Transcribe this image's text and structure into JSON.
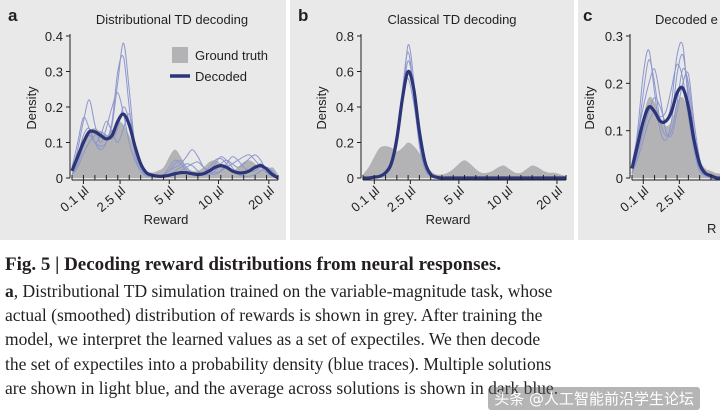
{
  "colors": {
    "panel_bg": "#e9e9ea",
    "ground_truth": "#b3b3b5",
    "decoded_dark": "#2b3577",
    "decoded_light": "#8d96cc",
    "text": "#231f20"
  },
  "panels": [
    {
      "letter": "a",
      "title": "Distributional TD decoding",
      "ylabel": "Density",
      "xlabel": "Reward",
      "yticks": [
        "0",
        "0.1",
        "0.2",
        "0.3",
        "0.4"
      ],
      "xticks": [
        "0.1 µl",
        "2.5 µl",
        "5 µl",
        "10 µl",
        "20 µl"
      ],
      "legend": {
        "ground_truth": "Ground truth",
        "decoded": "Decoded"
      }
    },
    {
      "letter": "b",
      "title": "Classical TD decoding",
      "ylabel": "Density",
      "xlabel": "Reward",
      "yticks": [
        "0",
        "0.2",
        "0.4",
        "0.6",
        "0.8"
      ],
      "xticks": [
        "0.1 µl",
        "2.5 µl",
        "5 µl",
        "10 µl",
        "20 µl"
      ]
    },
    {
      "letter": "c",
      "title": "Decoded e",
      "ylabel": "Density",
      "xlabel": "R",
      "yticks": [
        "0",
        "0.1",
        "0.2",
        "0.3"
      ],
      "xticks": [
        "0.1 µl",
        "2.5 µl",
        "5 µl"
      ]
    }
  ],
  "chart_data": [
    {
      "type": "area",
      "title": "Distributional TD decoding",
      "xlabel": "Reward",
      "ylabel": "Density",
      "ylim": [
        0,
        0.4
      ],
      "x_categories": [
        "0.1 µl",
        "2.5 µl",
        "5 µl",
        "10 µl",
        "20 µl"
      ],
      "x_index": [
        0,
        0.5,
        1,
        1.5,
        2,
        2.5,
        3,
        3.5,
        4,
        4.5,
        5,
        5.5,
        6,
        6.5,
        7,
        7.5,
        8,
        8.5,
        9,
        9.5,
        10,
        10.5,
        11,
        11.5,
        12,
        12.5,
        13,
        13.5,
        14,
        14.5,
        15,
        15.5,
        16,
        16.5,
        17,
        17.5,
        18
      ],
      "series": [
        {
          "name": "Ground truth",
          "values": [
            0.02,
            0.05,
            0.09,
            0.13,
            0.14,
            0.13,
            0.12,
            0.135,
            0.16,
            0.15,
            0.12,
            0.08,
            0.04,
            0.02,
            0.015,
            0.02,
            0.03,
            0.06,
            0.08,
            0.06,
            0.03,
            0.02,
            0.02,
            0.03,
            0.045,
            0.05,
            0.04,
            0.025,
            0.02,
            0.03,
            0.045,
            0.05,
            0.04,
            0.025,
            0.02,
            0.03,
            0.01
          ]
        },
        {
          "name": "Decoded",
          "values": [
            0.02,
            0.06,
            0.1,
            0.13,
            0.13,
            0.12,
            0.11,
            0.12,
            0.16,
            0.18,
            0.15,
            0.09,
            0.04,
            0.015,
            0.008,
            0.005,
            0.005,
            0.008,
            0.012,
            0.015,
            0.015,
            0.012,
            0.01,
            0.012,
            0.02,
            0.03,
            0.035,
            0.03,
            0.02,
            0.015,
            0.015,
            0.02,
            0.03,
            0.035,
            0.025,
            0.01,
            0.0
          ]
        },
        {
          "name": "Solution 1",
          "values": [
            0.02,
            0.08,
            0.16,
            0.22,
            0.15,
            0.1,
            0.14,
            0.2,
            0.24,
            0.18,
            0.1,
            0.05,
            0.02,
            0.01,
            0.005,
            0.005,
            0.01,
            0.03,
            0.05,
            0.04,
            0.02,
            0.01,
            0.005,
            0.01,
            0.02,
            0.04,
            0.06,
            0.05,
            0.03,
            0.01,
            0.005,
            0.005,
            0.01,
            0.02,
            0.03,
            0.02,
            0.0
          ]
        },
        {
          "name": "Solution 2",
          "values": [
            0.01,
            0.04,
            0.09,
            0.12,
            0.1,
            0.09,
            0.1,
            0.15,
            0.27,
            0.38,
            0.25,
            0.09,
            0.03,
            0.01,
            0.005,
            0.005,
            0.005,
            0.005,
            0.01,
            0.02,
            0.03,
            0.04,
            0.045,
            0.03,
            0.02,
            0.015,
            0.02,
            0.03,
            0.04,
            0.05,
            0.06,
            0.065,
            0.05,
            0.03,
            0.015,
            0.005,
            0.0
          ]
        },
        {
          "name": "Solution 3",
          "values": [
            0.03,
            0.1,
            0.17,
            0.14,
            0.1,
            0.12,
            0.16,
            0.13,
            0.1,
            0.14,
            0.18,
            0.1,
            0.04,
            0.01,
            0.005,
            0.005,
            0.01,
            0.02,
            0.03,
            0.04,
            0.06,
            0.08,
            0.06,
            0.03,
            0.015,
            0.01,
            0.02,
            0.04,
            0.06,
            0.05,
            0.03,
            0.02,
            0.02,
            0.03,
            0.025,
            0.01,
            0.0
          ]
        },
        {
          "name": "Solution 4",
          "values": [
            0.01,
            0.03,
            0.07,
            0.1,
            0.12,
            0.13,
            0.12,
            0.11,
            0.14,
            0.2,
            0.16,
            0.08,
            0.03,
            0.01,
            0.005,
            0.005,
            0.005,
            0.01,
            0.02,
            0.03,
            0.04,
            0.035,
            0.02,
            0.01,
            0.01,
            0.02,
            0.04,
            0.05,
            0.04,
            0.03,
            0.04,
            0.055,
            0.065,
            0.05,
            0.02,
            0.005,
            0.0
          ]
        },
        {
          "name": "Solution 5",
          "values": [
            0.02,
            0.06,
            0.12,
            0.14,
            0.1,
            0.08,
            0.1,
            0.16,
            0.3,
            0.34,
            0.2,
            0.07,
            0.02,
            0.005,
            0.005,
            0.005,
            0.01,
            0.02,
            0.04,
            0.05,
            0.03,
            0.015,
            0.01,
            0.015,
            0.03,
            0.05,
            0.055,
            0.04,
            0.02,
            0.01,
            0.01,
            0.02,
            0.03,
            0.04,
            0.02,
            0.01,
            0.0
          ]
        }
      ]
    },
    {
      "type": "area",
      "title": "Classical TD decoding",
      "xlabel": "Reward",
      "ylabel": "Density",
      "ylim": [
        0,
        0.8
      ],
      "x_categories": [
        "0.1 µl",
        "2.5 µl",
        "5 µl",
        "10 µl",
        "20 µl"
      ],
      "x_index": [
        0,
        0.5,
        1,
        1.5,
        2,
        2.5,
        3,
        3.5,
        4,
        4.5,
        5,
        5.5,
        6,
        6.5,
        7,
        7.5,
        8,
        8.5,
        9,
        9.5,
        10,
        10.5,
        11,
        11.5,
        12,
        12.5,
        13,
        13.5,
        14,
        14.5,
        15,
        15.5,
        16,
        16.5,
        17,
        17.5,
        18
      ],
      "series": [
        {
          "name": "Ground truth",
          "values": [
            0.02,
            0.06,
            0.12,
            0.17,
            0.18,
            0.17,
            0.15,
            0.17,
            0.2,
            0.18,
            0.14,
            0.08,
            0.04,
            0.02,
            0.02,
            0.03,
            0.05,
            0.08,
            0.1,
            0.08,
            0.05,
            0.03,
            0.03,
            0.04,
            0.06,
            0.07,
            0.05,
            0.03,
            0.03,
            0.05,
            0.07,
            0.06,
            0.04,
            0.03,
            0.03,
            0.02,
            0.01
          ]
        },
        {
          "name": "Decoded",
          "values": [
            0.0,
            0.0,
            0.005,
            0.01,
            0.03,
            0.08,
            0.22,
            0.45,
            0.6,
            0.5,
            0.26,
            0.09,
            0.02,
            0.005,
            0.0,
            0.0,
            0.0,
            0.0,
            0.0,
            0.0,
            0.0,
            0.0,
            0.0,
            0.0,
            0.0,
            0.0,
            0.0,
            0.0,
            0.0,
            0.0,
            0.0,
            0.0,
            0.0,
            0.0,
            0.0,
            0.0,
            0.0
          ]
        },
        {
          "name": "Solution 1",
          "values": [
            0.0,
            0.0,
            0.0,
            0.005,
            0.02,
            0.06,
            0.18,
            0.42,
            0.75,
            0.55,
            0.2,
            0.05,
            0.01,
            0.0,
            0.0,
            0.0,
            0.0,
            0.0,
            0.0,
            0.0,
            0.0,
            0.0,
            0.0,
            0.0,
            0.0,
            0.0,
            0.0,
            0.0,
            0.0,
            0.0,
            0.0,
            0.0,
            0.0,
            0.0,
            0.0,
            0.0,
            0.0
          ]
        },
        {
          "name": "Solution 2",
          "values": [
            0.0,
            0.0,
            0.005,
            0.01,
            0.03,
            0.09,
            0.24,
            0.5,
            0.71,
            0.48,
            0.18,
            0.05,
            0.01,
            0.0,
            0.0,
            0.0,
            0.0,
            0.0,
            0.0,
            0.0,
            0.0,
            0.0,
            0.0,
            0.0,
            0.0,
            0.0,
            0.0,
            0.0,
            0.0,
            0.0,
            0.0,
            0.0,
            0.0,
            0.0,
            0.0,
            0.0,
            0.0
          ]
        },
        {
          "name": "Solution 3",
          "values": [
            0.0,
            0.0,
            0.005,
            0.01,
            0.04,
            0.1,
            0.26,
            0.48,
            0.56,
            0.42,
            0.2,
            0.06,
            0.015,
            0.0,
            0.0,
            0.0,
            0.0,
            0.0,
            0.0,
            0.0,
            0.0,
            0.0,
            0.0,
            0.0,
            0.0,
            0.0,
            0.0,
            0.0,
            0.0,
            0.0,
            0.0,
            0.0,
            0.0,
            0.0,
            0.0,
            0.0,
            0.0
          ]
        },
        {
          "name": "Solution 4",
          "values": [
            0.0,
            0.0,
            0.0,
            0.005,
            0.02,
            0.07,
            0.2,
            0.44,
            0.66,
            0.5,
            0.22,
            0.06,
            0.01,
            0.0,
            0.0,
            0.0,
            0.0,
            0.0,
            0.0,
            0.0,
            0.0,
            0.0,
            0.0,
            0.0,
            0.0,
            0.0,
            0.0,
            0.0,
            0.0,
            0.0,
            0.0,
            0.0,
            0.0,
            0.0,
            0.0,
            0.0,
            0.0
          ]
        }
      ]
    },
    {
      "type": "area",
      "title": "Decoded e",
      "xlabel": "R",
      "ylabel": "Density",
      "ylim": [
        0,
        0.3
      ],
      "x_categories": [
        "0.1 µl",
        "2.5 µl",
        "5 µl"
      ],
      "x_index": [
        0,
        0.5,
        1,
        1.5,
        2,
        2.5,
        3,
        3.5,
        4,
        4.5,
        5,
        5.5,
        6,
        6.5,
        7,
        7.5,
        8,
        8.5,
        9,
        9.5,
        10,
        10.5,
        11,
        11.5,
        12,
        12.5,
        13,
        13.5,
        14,
        14.5,
        15,
        15.5,
        16,
        16.5,
        17,
        17.5,
        18
      ],
      "series": [
        {
          "name": "Ground truth",
          "values": [
            0.02,
            0.06,
            0.13,
            0.17,
            0.16,
            0.13,
            0.11,
            0.12,
            0.16,
            0.17,
            0.14,
            0.09,
            0.04,
            0.02,
            0.015,
            0.01,
            0.01,
            0.01,
            0.01,
            0.01,
            0.01,
            0.01,
            0.01,
            0.01,
            0.01,
            0.01,
            0.01,
            0.01,
            0.01,
            0.01,
            0.01,
            0.01,
            0.01,
            0.01,
            0.01,
            0.01,
            0.01
          ]
        },
        {
          "name": "Decoded",
          "values": [
            0.02,
            0.07,
            0.12,
            0.15,
            0.14,
            0.12,
            0.12,
            0.14,
            0.18,
            0.19,
            0.15,
            0.08,
            0.03,
            0.01,
            0.005,
            0.0,
            0.0,
            0.0,
            0.0,
            0.0,
            0.0,
            0.0,
            0.0,
            0.0,
            0.0,
            0.0,
            0.0,
            0.0,
            0.0,
            0.0,
            0.0,
            0.0,
            0.0,
            0.0,
            0.0,
            0.0,
            0.0
          ]
        },
        {
          "name": "Solution 1",
          "values": [
            0.02,
            0.1,
            0.22,
            0.27,
            0.18,
            0.1,
            0.08,
            0.12,
            0.22,
            0.26,
            0.18,
            0.08,
            0.02,
            0.005,
            0.0,
            0.0,
            0.0,
            0.0,
            0.0,
            0.0,
            0.0,
            0.0,
            0.0,
            0.0,
            0.0,
            0.0,
            0.0,
            0.0,
            0.0,
            0.0,
            0.0,
            0.0,
            0.0,
            0.0,
            0.0,
            0.0,
            0.0
          ]
        },
        {
          "name": "Solution 2",
          "values": [
            0.01,
            0.05,
            0.1,
            0.14,
            0.17,
            0.15,
            0.12,
            0.16,
            0.26,
            0.28,
            0.16,
            0.06,
            0.015,
            0.005,
            0.0,
            0.0,
            0.0,
            0.0,
            0.0,
            0.0,
            0.0,
            0.0,
            0.0,
            0.0,
            0.0,
            0.0,
            0.0,
            0.0,
            0.0,
            0.0,
            0.0,
            0.0,
            0.0,
            0.0,
            0.0,
            0.0,
            0.0
          ]
        },
        {
          "name": "Solution 3",
          "values": [
            0.03,
            0.09,
            0.15,
            0.2,
            0.23,
            0.17,
            0.1,
            0.09,
            0.14,
            0.2,
            0.22,
            0.12,
            0.04,
            0.01,
            0.0,
            0.0,
            0.0,
            0.0,
            0.0,
            0.0,
            0.0,
            0.0,
            0.0,
            0.0,
            0.0,
            0.0,
            0.0,
            0.0,
            0.0,
            0.0,
            0.0,
            0.0,
            0.0,
            0.0,
            0.0,
            0.0,
            0.0
          ]
        },
        {
          "name": "Solution 4",
          "values": [
            0.01,
            0.04,
            0.08,
            0.12,
            0.14,
            0.13,
            0.14,
            0.19,
            0.24,
            0.21,
            0.13,
            0.06,
            0.02,
            0.005,
            0.0,
            0.0,
            0.0,
            0.0,
            0.0,
            0.0,
            0.0,
            0.0,
            0.0,
            0.0,
            0.0,
            0.0,
            0.0,
            0.0,
            0.0,
            0.0,
            0.0,
            0.0,
            0.0,
            0.0,
            0.0,
            0.0,
            0.0
          ]
        },
        {
          "name": "Solution 5",
          "values": [
            0.02,
            0.08,
            0.18,
            0.25,
            0.2,
            0.12,
            0.09,
            0.1,
            0.16,
            0.23,
            0.2,
            0.1,
            0.03,
            0.01,
            0.0,
            0.0,
            0.0,
            0.0,
            0.0,
            0.0,
            0.0,
            0.0,
            0.0,
            0.0,
            0.0,
            0.0,
            0.0,
            0.0,
            0.0,
            0.0,
            0.0,
            0.0,
            0.0,
            0.0,
            0.0,
            0.0,
            0.0
          ]
        }
      ]
    }
  ],
  "caption": {
    "title": "Fig. 5 | Decoding reward distributions from neural responses.",
    "lines": [
      {
        "lead": "a",
        "text": ", Distributional TD simulation trained on the variable-magnitude task, whose"
      },
      {
        "lead": "",
        "text": "actual (smoothed) distribution of rewards is shown in grey. After training the"
      },
      {
        "lead": "",
        "text": "model, we interpret the learned values as a set of expectiles. We then decode"
      },
      {
        "lead": "",
        "text": "the set of expectiles into a probability density (blue traces). Multiple solutions"
      },
      {
        "lead": "",
        "text": "are shown in light blue, and the average across solutions is shown in dark blue."
      }
    ]
  },
  "watermark": "头条 @人工智能前沿学生论坛"
}
